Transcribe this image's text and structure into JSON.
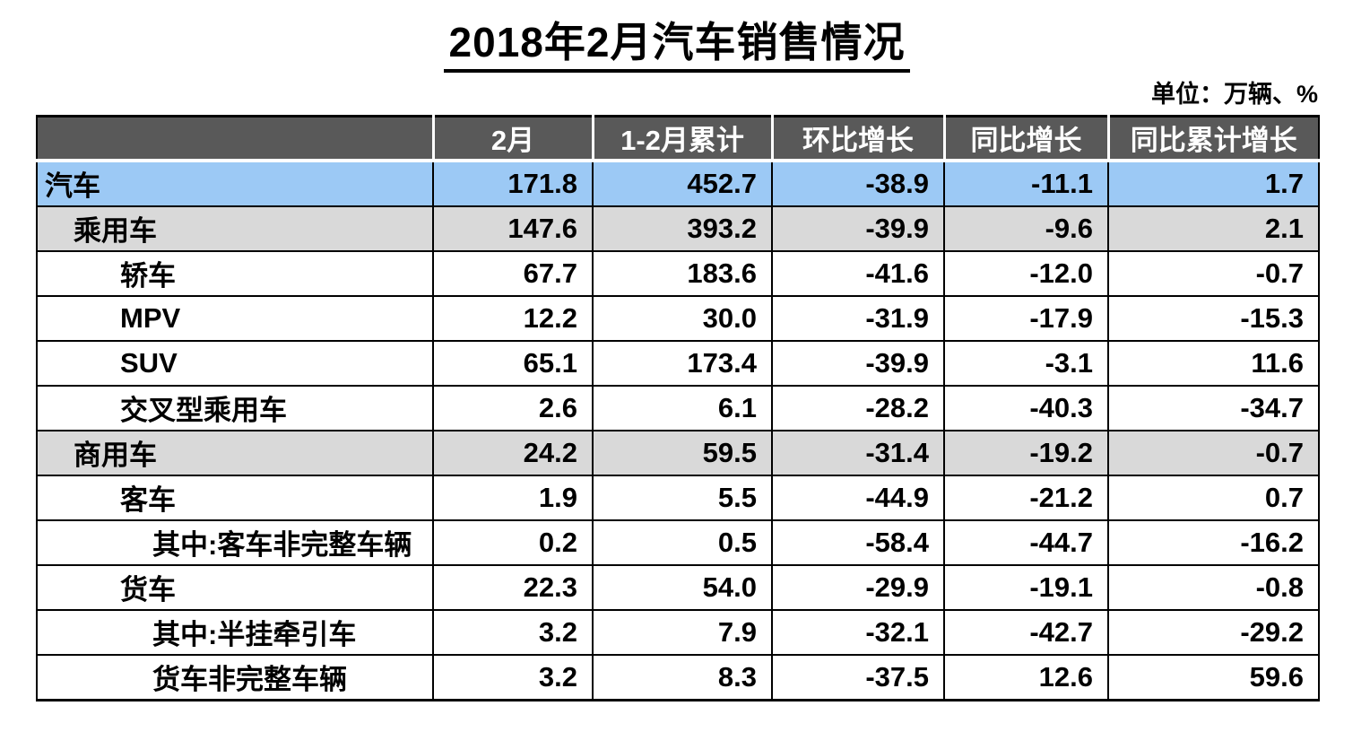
{
  "title": "2018年2月汽车销售情况",
  "unit_label": "单位：万辆、%",
  "chart_data": {
    "type": "table",
    "title": "2018年2月汽车销售情况",
    "unit": "万辆、%",
    "columns": [
      "",
      "2月",
      "1-2月累计",
      "环比增长",
      "同比增长",
      "同比累计增长"
    ],
    "highlight_colors": {
      "total_row": "#9CC9F5",
      "group_row": "#D9D9D9",
      "header": "#595959"
    },
    "rows": [
      {
        "label": "汽车",
        "indent": 0,
        "style": "blue",
        "values": [
          "171.8",
          "452.7",
          "-38.9",
          "-11.1",
          "1.7"
        ]
      },
      {
        "label": "乘用车",
        "indent": 1,
        "style": "gray",
        "values": [
          "147.6",
          "393.2",
          "-39.9",
          "-9.6",
          "2.1"
        ]
      },
      {
        "label": "轿车",
        "indent": 2,
        "style": "white",
        "values": [
          "67.7",
          "183.6",
          "-41.6",
          "-12.0",
          "-0.7"
        ]
      },
      {
        "label": "MPV",
        "indent": 2,
        "style": "white",
        "values": [
          "12.2",
          "30.0",
          "-31.9",
          "-17.9",
          "-15.3"
        ]
      },
      {
        "label": "SUV",
        "indent": 2,
        "style": "white",
        "values": [
          "65.1",
          "173.4",
          "-39.9",
          "-3.1",
          "11.6"
        ]
      },
      {
        "label": "交叉型乘用车",
        "indent": 2,
        "style": "white",
        "values": [
          "2.6",
          "6.1",
          "-28.2",
          "-40.3",
          "-34.7"
        ]
      },
      {
        "label": "商用车",
        "indent": 1,
        "style": "gray",
        "values": [
          "24.2",
          "59.5",
          "-31.4",
          "-19.2",
          "-0.7"
        ]
      },
      {
        "label": "客车",
        "indent": 2,
        "style": "white",
        "values": [
          "1.9",
          "5.5",
          "-44.9",
          "-21.2",
          "0.7"
        ]
      },
      {
        "label": "其中:客车非完整车辆",
        "indent": 3,
        "style": "white",
        "values": [
          "0.2",
          "0.5",
          "-58.4",
          "-44.7",
          "-16.2"
        ]
      },
      {
        "label": "货车",
        "indent": 2,
        "style": "white",
        "values": [
          "22.3",
          "54.0",
          "-29.9",
          "-19.1",
          "-0.8"
        ]
      },
      {
        "label": "其中:半挂牵引车",
        "indent": 3,
        "style": "white",
        "values": [
          "3.2",
          "7.9",
          "-32.1",
          "-42.7",
          "-29.2"
        ]
      },
      {
        "label": "货车非完整车辆",
        "indent": 3,
        "style": "white",
        "values": [
          "3.2",
          "8.3",
          "-37.5",
          "12.6",
          "59.6"
        ]
      }
    ]
  }
}
